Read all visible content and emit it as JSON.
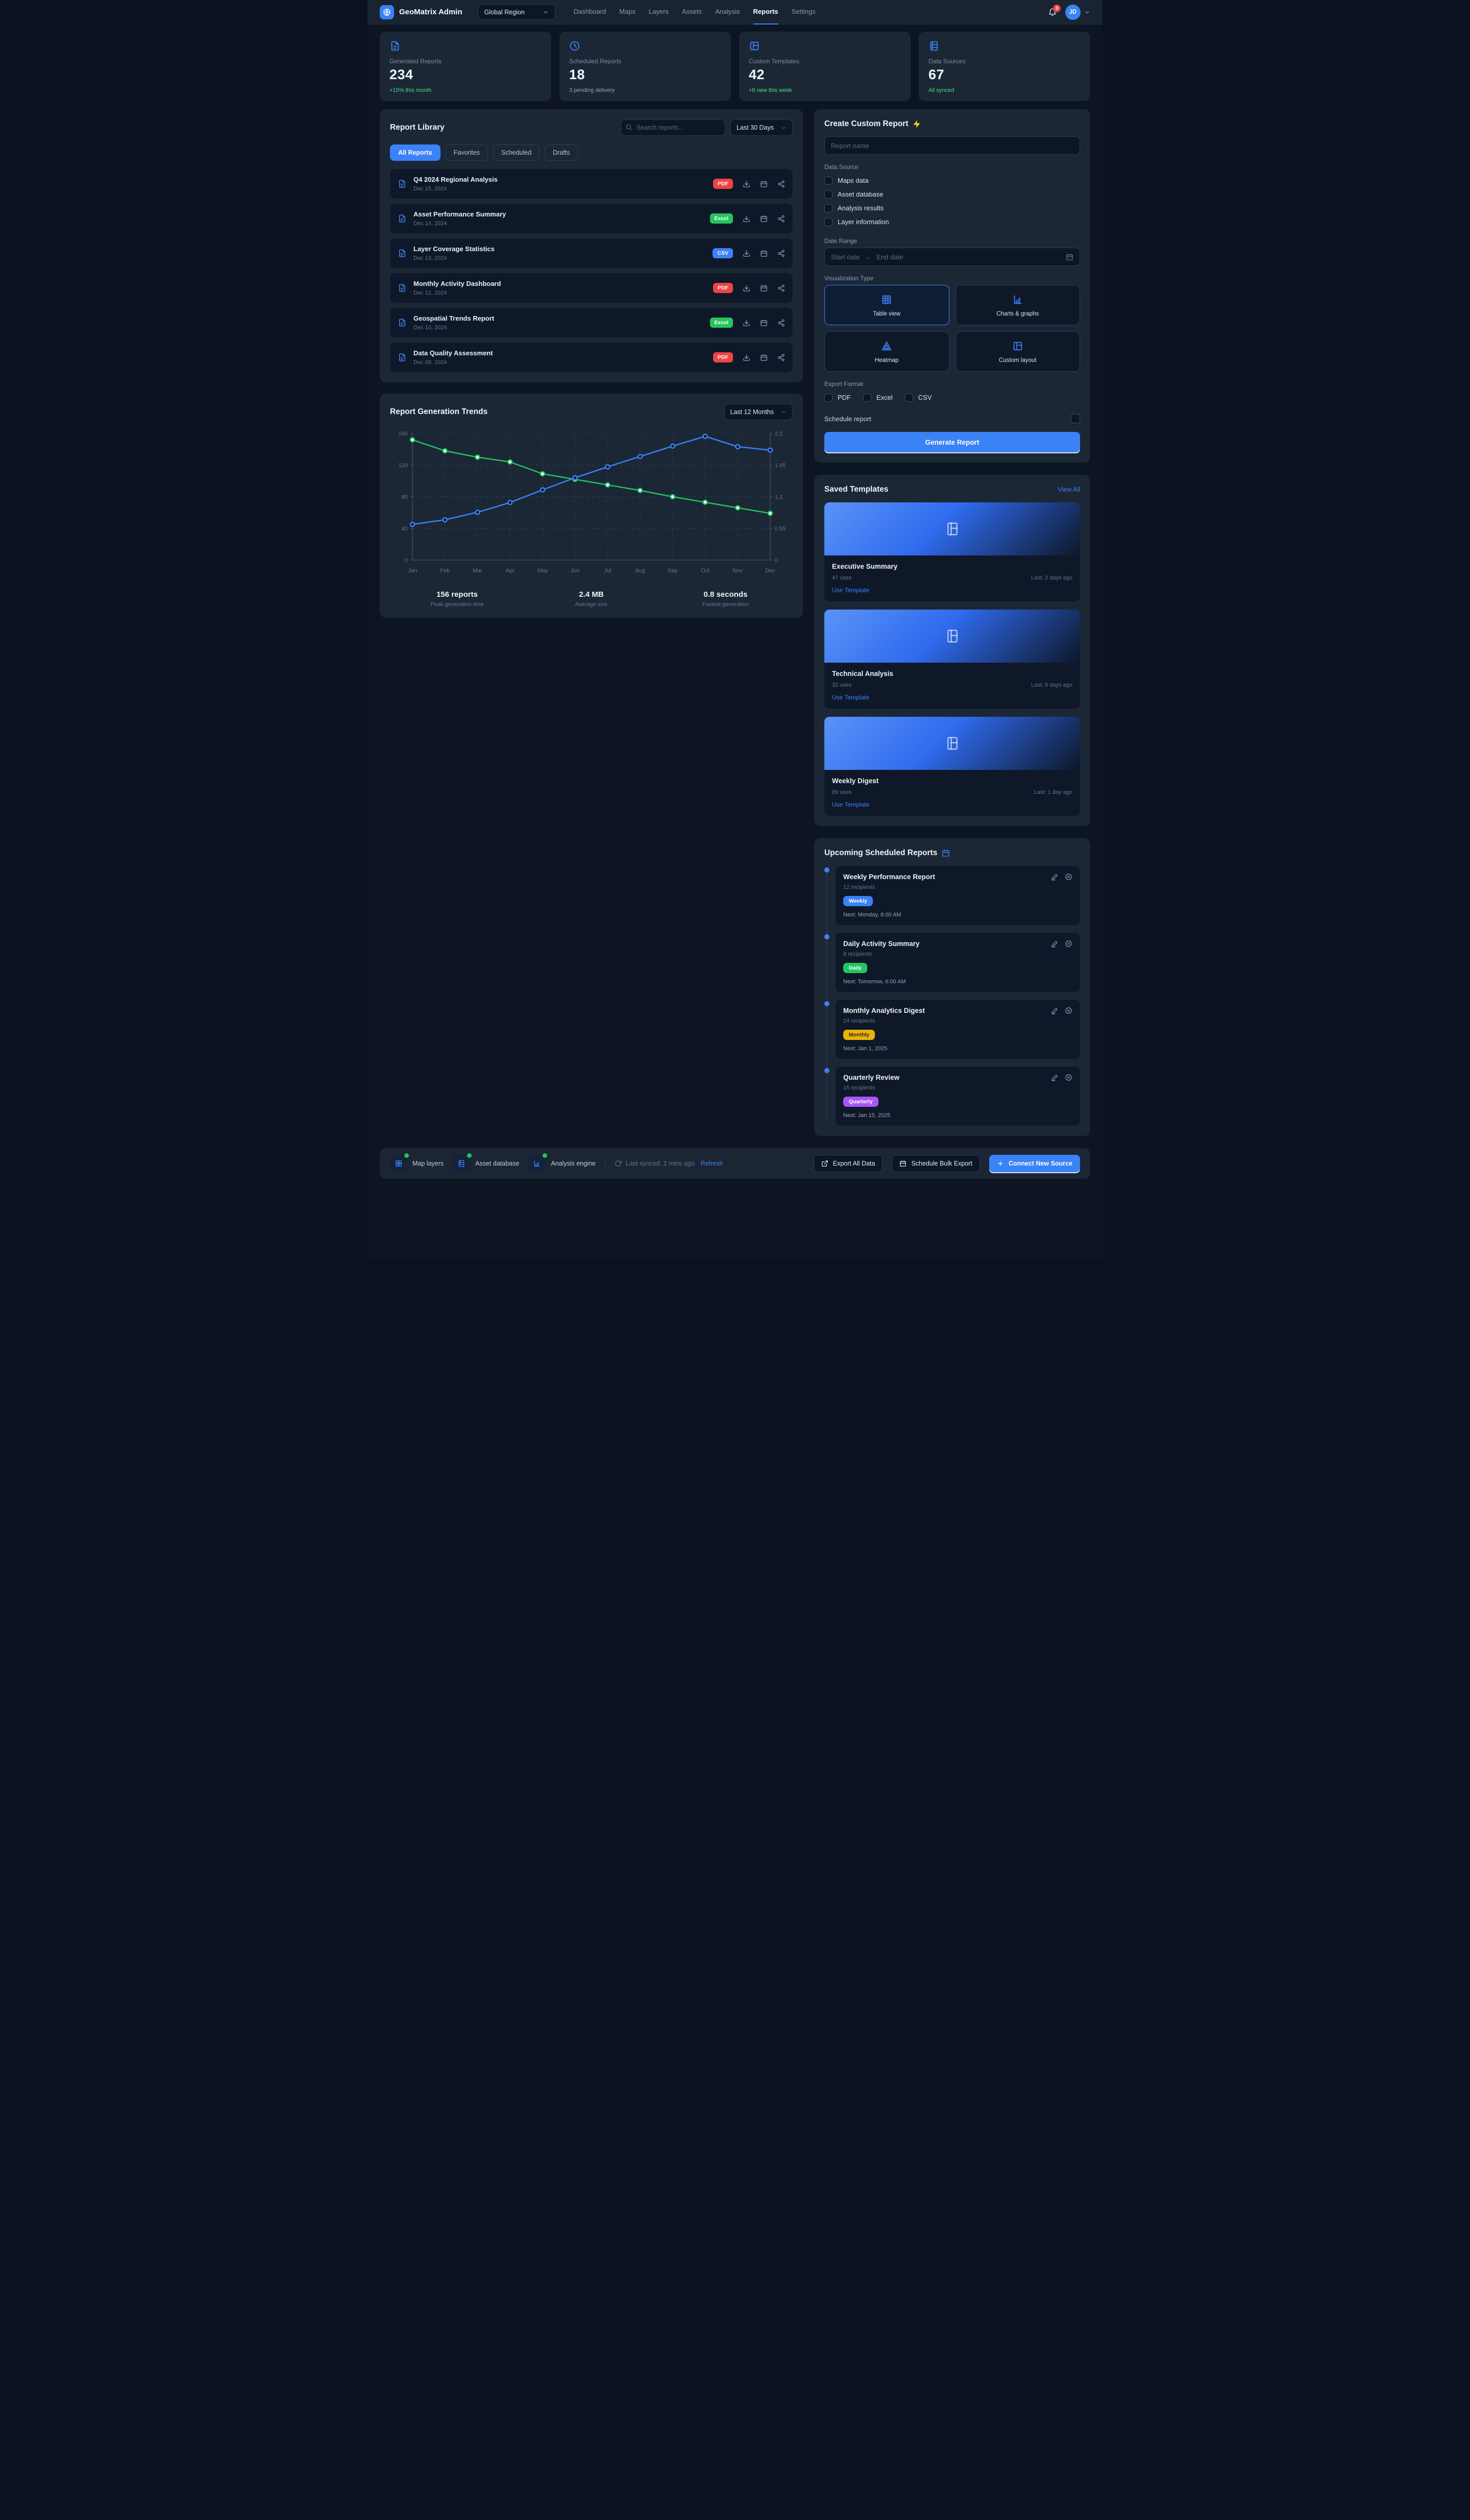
{
  "nav": {
    "brand": "GeoMatrix Admin",
    "region": "Global Region",
    "items": [
      {
        "label": "Dashboard"
      },
      {
        "label": "Maps"
      },
      {
        "label": "Layers"
      },
      {
        "label": "Assets"
      },
      {
        "label": "Analysis"
      },
      {
        "label": "Reports"
      },
      {
        "label": "Settings"
      }
    ],
    "bell_count": "3",
    "avatar": "JD"
  },
  "stats": {
    "cards": [
      {
        "label": "Generated Reports",
        "value": "234",
        "note": "+15% this month",
        "note_color": "#4ade80"
      },
      {
        "label": "Scheduled Reports",
        "value": "18",
        "note": "3 pending delivery",
        "note_color": "#94a3b8"
      },
      {
        "label": "Custom Templates",
        "value": "42",
        "note": "+8 new this week",
        "note_color": "#4ade80"
      },
      {
        "label": "Data Sources",
        "value": "67",
        "note": "All synced",
        "note_color": "#4ade80"
      }
    ]
  },
  "library": {
    "title": "Report Library",
    "search_placeholder": "Search reports...",
    "range": "Last 30 Days",
    "tabs": [
      {
        "label": "All Reports"
      },
      {
        "label": "Favorites"
      },
      {
        "label": "Scheduled"
      },
      {
        "label": "Drafts"
      }
    ],
    "reports": [
      {
        "title": "Q4 2024 Regional Analysis",
        "date": "Dec 15, 2024",
        "badge": "PDF",
        "badge_color": "#ef4444"
      },
      {
        "title": "Asset Performance Summary",
        "date": "Dec 14, 2024",
        "badge": "Excel",
        "badge_color": "#22c55e"
      },
      {
        "title": "Layer Coverage Statistics",
        "date": "Dec 13, 2024",
        "badge": "CSV",
        "badge_color": "#3b82f6"
      },
      {
        "title": "Monthly Activity Dashboard",
        "date": "Dec 12, 2024",
        "badge": "PDF",
        "badge_color": "#ef4444"
      },
      {
        "title": "Geospatial Trends Report",
        "date": "Dec 10, 2024",
        "badge": "Excel",
        "badge_color": "#22c55e"
      },
      {
        "title": "Data Quality Assessment",
        "date": "Dec 08, 2024",
        "badge": "PDF",
        "badge_color": "#ef4444"
      }
    ]
  },
  "trends": {
    "title": "Report Generation Trends",
    "range": "Last 12 Months",
    "summary": [
      {
        "value": "156 reports",
        "label": "Peak generation time"
      },
      {
        "value": "2.4 MB",
        "label": "Average size"
      },
      {
        "value": "0.8 seconds",
        "label": "Fastest generation"
      }
    ]
  },
  "chart_data": {
    "type": "line",
    "x": [
      "Jan",
      "Feb",
      "Mar",
      "Apr",
      "May",
      "Jun",
      "Jul",
      "Aug",
      "Sep",
      "Oct",
      "Nov",
      "Dec"
    ],
    "series": [
      {
        "name": "green",
        "axis": "left",
        "color": "#22c55e",
        "dot_fill": "#ffffff",
        "values": [
          152,
          138,
          130,
          124,
          109,
          102,
          95,
          88,
          80,
          73,
          66,
          59
        ]
      },
      {
        "name": "blue",
        "axis": "right",
        "color": "#3b82f6",
        "dot_fill": "#0d1523",
        "values": [
          0.62,
          0.7,
          0.83,
          1.0,
          1.22,
          1.43,
          1.62,
          1.8,
          1.98,
          2.15,
          1.97,
          1.91
        ]
      }
    ],
    "left_axis": {
      "min": 0,
      "max": 160,
      "ticks": [
        0,
        40,
        80,
        120,
        160
      ]
    },
    "right_axis": {
      "min": 0,
      "max": 2.2,
      "ticks": [
        0,
        0.55,
        1.1,
        1.65,
        2.2
      ]
    },
    "grid": true,
    "legend": "none"
  },
  "create": {
    "title": "Create Custom Report",
    "name_placeholder": "Report name",
    "source_label": "Data Source",
    "sources": [
      {
        "label": "Maps data"
      },
      {
        "label": "Asset database"
      },
      {
        "label": "Analysis results"
      },
      {
        "label": "Layer information"
      }
    ],
    "range_label": "Date Range",
    "start_placeholder": "Start date",
    "arrow": "→",
    "end_placeholder": "End date",
    "viz_label": "Visualization Type",
    "viz_options": [
      {
        "label": "Table view"
      },
      {
        "label": "Charts & graphs"
      },
      {
        "label": "Heatmap"
      },
      {
        "label": "Custom layout"
      }
    ],
    "export_label": "Export Format",
    "export_options": [
      {
        "label": "PDF"
      },
      {
        "label": "Excel"
      },
      {
        "label": "CSV"
      }
    ],
    "schedule_label": "Schedule report",
    "submit_label": "Generate Report"
  },
  "templates": {
    "title": "Saved Templates",
    "view_all": "View All",
    "action": "Use Template",
    "items": [
      {
        "name": "Executive Summary",
        "uses": "47 uses",
        "last": "Last: 2 days ago"
      },
      {
        "name": "Technical Analysis",
        "uses": "32 uses",
        "last": "Last: 5 days ago"
      },
      {
        "name": "Weekly Digest",
        "uses": "89 uses",
        "last": "Last: 1 day ago"
      }
    ]
  },
  "scheduled": {
    "title": "Upcoming Scheduled Reports",
    "items": [
      {
        "name": "Weekly Performance Report",
        "recipients": "12 recipients",
        "badge": "Weekly",
        "badge_color": "#3b82f6",
        "badge_text": "#ffffff",
        "next": "Next: Monday, 8:00 AM"
      },
      {
        "name": "Daily Activity Summary",
        "recipients": "8 recipients",
        "badge": "Daily",
        "badge_color": "#22c55e",
        "badge_text": "#ffffff",
        "next": "Next: Tomorrow, 6:00 AM"
      },
      {
        "name": "Monthly Analytics Digest",
        "recipients": "24 recipients",
        "badge": "Monthly",
        "badge_color": "#eab308",
        "badge_text": "#1f2937",
        "next": "Next: Jan 1, 2025"
      },
      {
        "name": "Quarterly Review",
        "recipients": "15 recipients",
        "badge": "Quarterly",
        "badge_color": "#a855f7",
        "badge_text": "#ffffff",
        "next": "Next: Jan 15, 2025"
      }
    ]
  },
  "footer": {
    "statuses": [
      {
        "label": "Map layers"
      },
      {
        "label": "Asset database"
      },
      {
        "label": "Analysis engine"
      }
    ],
    "synced": "Last synced: 2 mins ago",
    "refresh": "Refresh",
    "export_btn": "Export All Data",
    "bulk_btn": "Schedule Bulk Export",
    "connect_btn": "Connect New Source"
  }
}
